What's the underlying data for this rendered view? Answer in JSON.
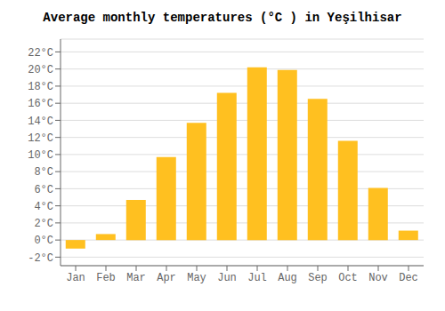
{
  "chart_data": {
    "type": "bar",
    "title": "Average monthly temperatures (°C ) in Yeşilhisar",
    "categories": [
      "Jan",
      "Feb",
      "Mar",
      "Apr",
      "May",
      "Jun",
      "Jul",
      "Aug",
      "Sep",
      "Oct",
      "Nov",
      "Dec"
    ],
    "values": [
      -1.0,
      0.7,
      4.7,
      9.7,
      13.7,
      17.2,
      20.2,
      19.9,
      16.5,
      11.6,
      6.1,
      1.1
    ],
    "color": "#FFC020",
    "ylim": [
      -3.0,
      23.5
    ],
    "yticks": [
      {
        "value": -2,
        "label": "-2°C"
      },
      {
        "value": 0,
        "label": "0°C"
      },
      {
        "value": 2,
        "label": "2°C"
      },
      {
        "value": 4,
        "label": "4°C"
      },
      {
        "value": 6,
        "label": "6°C"
      },
      {
        "value": 8,
        "label": "8°C"
      },
      {
        "value": 10,
        "label": "10°C"
      },
      {
        "value": 12,
        "label": "12°C"
      },
      {
        "value": 14,
        "label": "14°C"
      },
      {
        "value": 16,
        "label": "16°C"
      },
      {
        "value": 18,
        "label": "18°C"
      },
      {
        "value": 20,
        "label": "20°C"
      },
      {
        "value": 22,
        "label": "22°C"
      }
    ],
    "grid": true
  }
}
